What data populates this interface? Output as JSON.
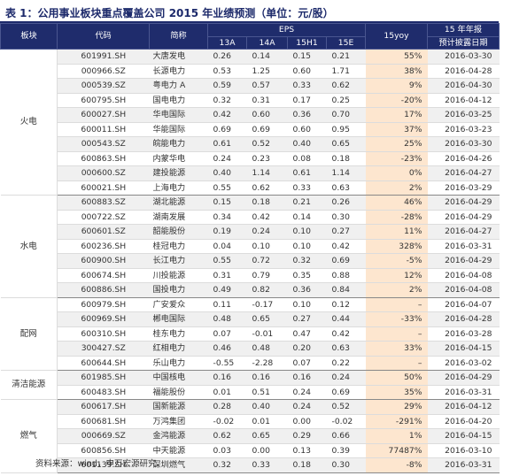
{
  "title": "表 1：公用事业板块重点覆盖公司 2015 年业绩预测（单位：元/股）",
  "headers": {
    "sector": "板块",
    "code": "代码",
    "name": "简称",
    "eps": "EPS",
    "y13": "13A",
    "y14": "14A",
    "h151": "15H1",
    "e15": "15E",
    "yoy": "15yoy",
    "report": "15 年年报",
    "report_date": "预计披露日期"
  },
  "groups": [
    {
      "sector": "火电",
      "rows": [
        {
          "code": "601991.SH",
          "name": "大唐发电",
          "a13": "0.26",
          "a14": "0.14",
          "h1": "0.15",
          "e15": "0.21",
          "yoy": "55%",
          "date": "2016-03-30"
        },
        {
          "code": "000966.SZ",
          "name": "长源电力",
          "a13": "0.53",
          "a14": "1.25",
          "h1": "0.60",
          "e15": "1.71",
          "yoy": "38%",
          "date": "2016-04-28"
        },
        {
          "code": "000539.SZ",
          "name": "粤电力 A",
          "a13": "0.59",
          "a14": "0.57",
          "h1": "0.33",
          "e15": "0.62",
          "yoy": "9%",
          "date": "2016-04-30"
        },
        {
          "code": "600795.SH",
          "name": "国电电力",
          "a13": "0.32",
          "a14": "0.31",
          "h1": "0.17",
          "e15": "0.25",
          "yoy": "-20%",
          "date": "2016-04-12"
        },
        {
          "code": "600027.SH",
          "name": "华电国际",
          "a13": "0.42",
          "a14": "0.60",
          "h1": "0.36",
          "e15": "0.70",
          "yoy": "17%",
          "date": "2016-03-25"
        },
        {
          "code": "600011.SH",
          "name": "华能国际",
          "a13": "0.69",
          "a14": "0.69",
          "h1": "0.60",
          "e15": "0.95",
          "yoy": "37%",
          "date": "2016-03-23"
        },
        {
          "code": "000543.SZ",
          "name": "皖能电力",
          "a13": "0.61",
          "a14": "0.52",
          "h1": "0.40",
          "e15": "0.65",
          "yoy": "25%",
          "date": "2016-03-30"
        },
        {
          "code": "600863.SH",
          "name": "内蒙华电",
          "a13": "0.24",
          "a14": "0.23",
          "h1": "0.08",
          "e15": "0.18",
          "yoy": "-23%",
          "date": "2016-04-26"
        },
        {
          "code": "000600.SZ",
          "name": "建投能源",
          "a13": "0.40",
          "a14": "1.14",
          "h1": "0.61",
          "e15": "1.14",
          "yoy": "0%",
          "date": "2016-04-27"
        },
        {
          "code": "600021.SH",
          "name": "上海电力",
          "a13": "0.55",
          "a14": "0.62",
          "h1": "0.33",
          "e15": "0.63",
          "yoy": "2%",
          "date": "2016-03-29"
        }
      ]
    },
    {
      "sector": "水电",
      "rows": [
        {
          "code": "600883.SZ",
          "name": "湖北能源",
          "a13": "0.15",
          "a14": "0.18",
          "h1": "0.21",
          "e15": "0.26",
          "yoy": "46%",
          "date": "2016-04-29"
        },
        {
          "code": "000722.SZ",
          "name": "湖南发展",
          "a13": "0.34",
          "a14": "0.42",
          "h1": "0.14",
          "e15": "0.30",
          "yoy": "-28%",
          "date": "2016-04-29"
        },
        {
          "code": "600601.SZ",
          "name": "韶能股份",
          "a13": "0.19",
          "a14": "0.24",
          "h1": "0.10",
          "e15": "0.27",
          "yoy": "11%",
          "date": "2016-04-27"
        },
        {
          "code": "600236.SH",
          "name": "桂冠电力",
          "a13": "0.04",
          "a14": "0.10",
          "h1": "0.10",
          "e15": "0.42",
          "yoy": "328%",
          "date": "2016-03-31"
        },
        {
          "code": "600900.SH",
          "name": "长江电力",
          "a13": "0.55",
          "a14": "0.72",
          "h1": "0.32",
          "e15": "0.69",
          "yoy": "-5%",
          "date": "2016-04-29"
        },
        {
          "code": "600674.SH",
          "name": "川投能源",
          "a13": "0.31",
          "a14": "0.79",
          "h1": "0.35",
          "e15": "0.88",
          "yoy": "12%",
          "date": "2016-04-08"
        },
        {
          "code": "600886.SH",
          "name": "国投电力",
          "a13": "0.49",
          "a14": "0.82",
          "h1": "0.36",
          "e15": "0.84",
          "yoy": "2%",
          "date": "2016-04-08"
        }
      ]
    },
    {
      "sector": "配网",
      "rows": [
        {
          "code": "600979.SH",
          "name": "广安爱众",
          "a13": "0.11",
          "a14": "-0.17",
          "h1": "0.10",
          "e15": "0.12",
          "yoy": "–",
          "date": "2016-04-07"
        },
        {
          "code": "600969.SH",
          "name": "郴电国际",
          "a13": "0.48",
          "a14": "0.65",
          "h1": "0.27",
          "e15": "0.44",
          "yoy": "-33%",
          "date": "2016-04-28"
        },
        {
          "code": "600310.SH",
          "name": "桂东电力",
          "a13": "0.07",
          "a14": "-0.01",
          "h1": "0.47",
          "e15": "0.42",
          "yoy": "–",
          "date": "2016-03-28"
        },
        {
          "code": "300427.SZ",
          "name": "红相电力",
          "a13": "0.46",
          "a14": "0.48",
          "h1": "0.20",
          "e15": "0.63",
          "yoy": "33%",
          "date": "2016-04-15"
        },
        {
          "code": "600644.SH",
          "name": "乐山电力",
          "a13": "-0.55",
          "a14": "-2.28",
          "h1": "0.07",
          "e15": "0.22",
          "yoy": "–",
          "date": "2016-03-02"
        }
      ]
    },
    {
      "sector": "清洁能源",
      "rows": [
        {
          "code": "601985.SH",
          "name": "中国核电",
          "a13": "0.16",
          "a14": "0.16",
          "h1": "0.16",
          "e15": "0.24",
          "yoy": "50%",
          "date": "2016-04-29"
        },
        {
          "code": "600483.SH",
          "name": "福能股份",
          "a13": "0.01",
          "a14": "0.51",
          "h1": "0.24",
          "e15": "0.69",
          "yoy": "35%",
          "date": "2016-03-31"
        }
      ]
    },
    {
      "sector": "燃气",
      "rows": [
        {
          "code": "600617.SH",
          "name": "国新能源",
          "a13": "0.28",
          "a14": "0.40",
          "h1": "0.24",
          "e15": "0.52",
          "yoy": "29%",
          "date": "2016-04-12"
        },
        {
          "code": "600681.SH",
          "name": "万鸿集团",
          "a13": "-0.02",
          "a14": "0.01",
          "h1": "0.00",
          "e15": "-0.02",
          "yoy": "-291%",
          "date": "2016-04-20"
        },
        {
          "code": "000669.SZ",
          "name": "金鸿能源",
          "a13": "0.62",
          "a14": "0.65",
          "h1": "0.29",
          "e15": "0.66",
          "yoy": "1%",
          "date": "2016-04-15"
        },
        {
          "code": "600856.SH",
          "name": "中天能源",
          "a13": "0.03",
          "a14": "0.00",
          "h1": "0.13",
          "e15": "0.39",
          "yoy": "77487%",
          "date": "2016-03-10"
        },
        {
          "code": "601139.SH",
          "name": "深圳燃气",
          "a13": "0.32",
          "a14": "0.33",
          "h1": "0.18",
          "e15": "0.30",
          "yoy": "-8%",
          "date": "2016-03-31"
        }
      ]
    }
  ],
  "source": "资料来源：wind，申万宏源研究",
  "colors": {
    "header_bg": "#1f2c6c",
    "highlight": "#fde6cf",
    "band": "#f0f0f0"
  }
}
